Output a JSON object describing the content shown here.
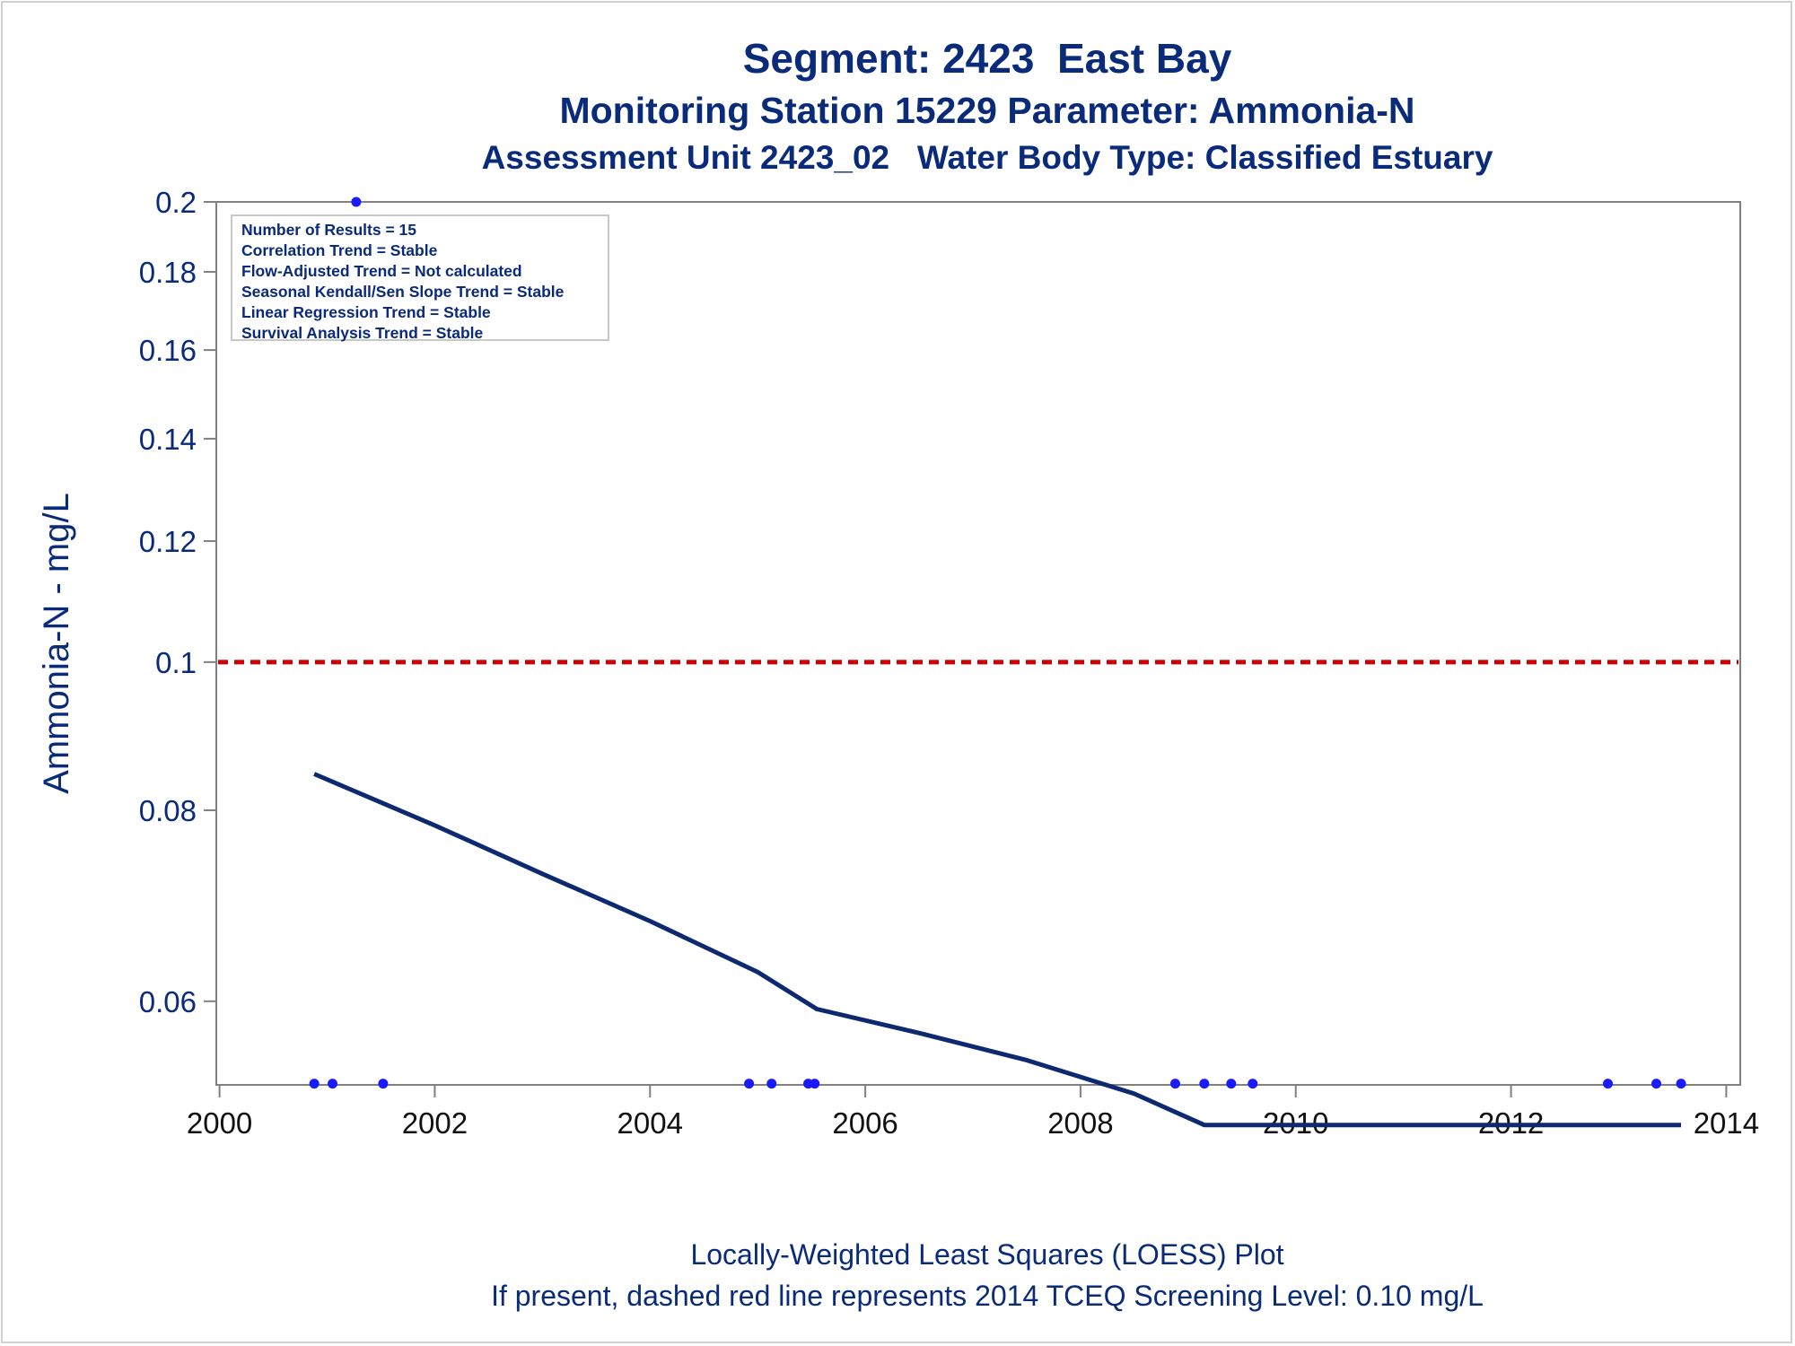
{
  "titles": {
    "line1": "Segment: 2423  East Bay",
    "line2": "Monitoring Station 15229 Parameter: Ammonia-N",
    "line3": "Assessment Unit 2423_02   Water Body Type: Classified Estuary"
  },
  "footnotes": {
    "line1": "Locally-Weighted Least Squares (LOESS) Plot",
    "line2": "If present, dashed red line represents 2014 TCEQ Screening Level: 0.10 mg/L"
  },
  "stats_box": [
    "Number of Results = 15",
    "Correlation Trend = Stable",
    "Flow-Adjusted Trend = Not calculated",
    "Seasonal Kendall/Sen Slope Trend = Stable",
    "Linear Regression Trend = Stable",
    "Survival Analysis Trend = Stable"
  ],
  "colors": {
    "text": "#0a2a7a",
    "loess_line": "#0d2a70",
    "points": "#1a1aff",
    "screening_line": "#cc0000",
    "axis": "#808080"
  },
  "chart_data": {
    "type": "scatter",
    "xlabel": "",
    "ylabel": "Ammonia-N - mg/L",
    "x_ticks": [
      2000,
      2002,
      2004,
      2006,
      2008,
      2010,
      2012,
      2014
    ],
    "y_ticks": [
      0.06,
      0.08,
      0.1,
      0.12,
      0.14,
      0.16,
      0.18,
      0.2
    ],
    "y_tick_labels": [
      "0.06",
      "0.08",
      "0.1",
      "0.12",
      "0.14",
      "0.16",
      "0.18",
      "0.2"
    ],
    "y_scale": "log",
    "xlim": [
      1999.97,
      2014.13
    ],
    "ylim": [
      0.0529,
      0.2
    ],
    "screening_level": 0.1,
    "points": [
      {
        "x": 2000.88,
        "y": 0.053
      },
      {
        "x": 2001.05,
        "y": 0.053
      },
      {
        "x": 2001.27,
        "y": 0.2
      },
      {
        "x": 2001.52,
        "y": 0.053
      },
      {
        "x": 2004.92,
        "y": 0.053
      },
      {
        "x": 2005.13,
        "y": 0.053
      },
      {
        "x": 2005.47,
        "y": 0.053
      },
      {
        "x": 2005.53,
        "y": 0.053
      },
      {
        "x": 2008.88,
        "y": 0.053
      },
      {
        "x": 2009.15,
        "y": 0.053
      },
      {
        "x": 2009.4,
        "y": 0.053
      },
      {
        "x": 2009.6,
        "y": 0.053
      },
      {
        "x": 2012.9,
        "y": 0.053
      },
      {
        "x": 2013.35,
        "y": 0.053
      },
      {
        "x": 2013.58,
        "y": 0.053
      }
    ],
    "loess": [
      {
        "x": 2000.88,
        "y": 0.0845
      },
      {
        "x": 2002.0,
        "y": 0.0782
      },
      {
        "x": 2003.0,
        "y": 0.0727
      },
      {
        "x": 2004.0,
        "y": 0.0677
      },
      {
        "x": 2005.0,
        "y": 0.0627
      },
      {
        "x": 2005.55,
        "y": 0.0593
      },
      {
        "x": 2006.5,
        "y": 0.0572
      },
      {
        "x": 2007.5,
        "y": 0.0549
      },
      {
        "x": 2008.5,
        "y": 0.0522
      },
      {
        "x": 2009.15,
        "y": 0.0498
      },
      {
        "x": 2013.58,
        "y": 0.0498
      }
    ]
  }
}
